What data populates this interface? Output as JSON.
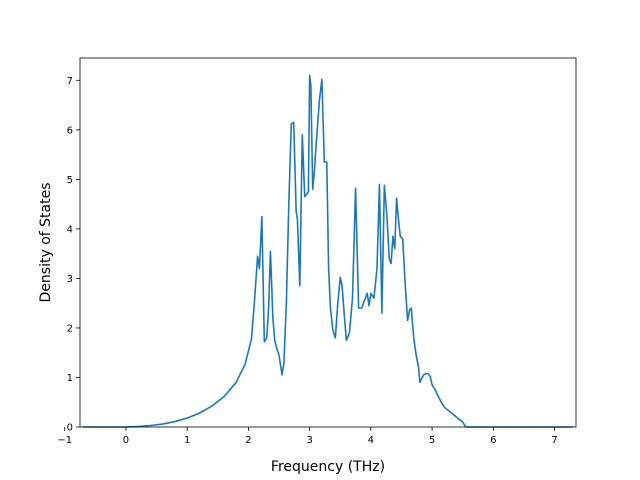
{
  "chart_data": {
    "type": "line",
    "title": "",
    "xlabel": "Frequency (THz)",
    "ylabel": "Density of States",
    "xlim": [
      -0.75,
      7.35
    ],
    "ylim": [
      0,
      7.45
    ],
    "grid": false,
    "xticks": [
      -1,
      0,
      1,
      2,
      3,
      4,
      5,
      6,
      7
    ],
    "xtick_labels": [
      "−1",
      "0",
      "1",
      "2",
      "3",
      "4",
      "5",
      "6",
      "7"
    ],
    "yticks": [
      0,
      1,
      2,
      3,
      4,
      5,
      6,
      7
    ],
    "ytick_labels": [
      "0",
      "1",
      "2",
      "3",
      "4",
      "5",
      "6",
      "7"
    ],
    "series": [
      {
        "color": "#1f77b4",
        "x": [
          -0.7,
          -0.3,
          0.0,
          0.2,
          0.4,
          0.6,
          0.8,
          1.0,
          1.2,
          1.4,
          1.6,
          1.8,
          1.95,
          2.05,
          2.1,
          2.15,
          2.18,
          2.22,
          2.26,
          2.3,
          2.33,
          2.36,
          2.4,
          2.43,
          2.46,
          2.5,
          2.55,
          2.58,
          2.62,
          2.66,
          2.7,
          2.74,
          2.78,
          2.8,
          2.84,
          2.88,
          2.92,
          2.95,
          2.98,
          3.0,
          3.02,
          3.05,
          3.08,
          3.1,
          3.13,
          3.16,
          3.2,
          3.24,
          3.28,
          3.31,
          3.34,
          3.38,
          3.42,
          3.46,
          3.5,
          3.53,
          3.57,
          3.6,
          3.65,
          3.7,
          3.75,
          3.8,
          3.85,
          3.88,
          3.91,
          3.94,
          3.97,
          4.0,
          4.05,
          4.1,
          4.14,
          4.18,
          4.22,
          4.26,
          4.3,
          4.33,
          4.36,
          4.39,
          4.42,
          4.45,
          4.48,
          4.52,
          4.56,
          4.6,
          4.63,
          4.66,
          4.7,
          4.74,
          4.78,
          4.8,
          4.83,
          4.86,
          4.9,
          4.94,
          4.97,
          5.0,
          5.05,
          5.1,
          5.15,
          5.2,
          5.3,
          5.4,
          5.5,
          5.55,
          5.6,
          5.7,
          5.8,
          6.0,
          6.2,
          6.4,
          6.55,
          6.62,
          6.7,
          7.0,
          7.3
        ],
        "y": [
          0.0,
          0.0,
          0.0,
          0.01,
          0.03,
          0.06,
          0.11,
          0.18,
          0.28,
          0.42,
          0.61,
          0.9,
          1.28,
          1.78,
          2.55,
          3.45,
          3.2,
          4.25,
          1.72,
          1.8,
          2.4,
          3.55,
          2.2,
          1.75,
          1.6,
          1.45,
          1.05,
          1.3,
          2.5,
          4.5,
          6.12,
          6.15,
          4.35,
          4.2,
          2.85,
          5.9,
          4.65,
          4.7,
          4.75,
          7.1,
          6.9,
          4.8,
          5.2,
          5.6,
          6.1,
          6.6,
          7.02,
          5.35,
          5.35,
          3.2,
          2.4,
          1.95,
          1.8,
          2.5,
          3.02,
          2.85,
          2.2,
          1.75,
          1.9,
          2.6,
          4.82,
          2.4,
          2.4,
          2.5,
          2.6,
          2.7,
          2.45,
          2.7,
          2.6,
          3.2,
          4.9,
          2.3,
          4.88,
          4.3,
          3.4,
          3.3,
          3.85,
          3.6,
          4.62,
          4.2,
          3.85,
          3.8,
          2.9,
          2.15,
          2.35,
          2.4,
          1.8,
          1.45,
          1.2,
          0.9,
          0.98,
          1.05,
          1.08,
          1.07,
          1.02,
          0.85,
          0.75,
          0.62,
          0.5,
          0.4,
          0.3,
          0.2,
          0.1,
          0.0,
          0.0,
          0.0,
          0.0,
          0.0,
          0.0,
          0.0,
          0.0,
          0.0,
          0.0,
          0.0,
          0.0
        ]
      }
    ]
  }
}
